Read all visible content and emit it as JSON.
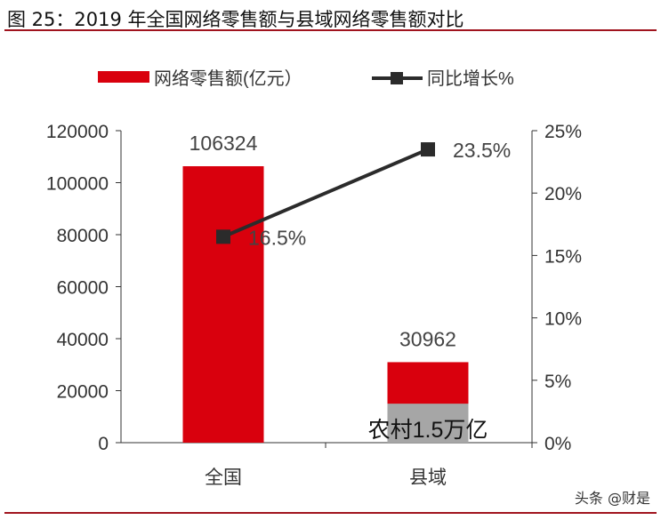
{
  "title": "图 25：2019 年全国网络零售额与县域网络零售额对比",
  "watermark": "头条 @财是",
  "chart_data": {
    "type": "bar+line",
    "categories": [
      "全国",
      "县域"
    ],
    "series": [
      {
        "name": "网络零售额(亿元）",
        "type": "bar",
        "axis": "left",
        "color": "#d9000d",
        "values": [
          106324,
          30962
        ],
        "data_labels": [
          "106324",
          "30962"
        ]
      },
      {
        "name": "同比增长%",
        "type": "line",
        "axis": "right",
        "color": "#2b2b2b",
        "values": [
          16.5,
          23.5
        ],
        "data_labels": [
          "16.5%",
          "23.5%"
        ]
      }
    ],
    "annotation": {
      "text": "农村1.5万亿",
      "category": "县域",
      "value": 15000,
      "color": "#a6a6a6"
    },
    "left_axis": {
      "range": [
        0,
        120000
      ],
      "ticks": [
        "0",
        "20000",
        "40000",
        "60000",
        "80000",
        "100000",
        "120000"
      ]
    },
    "right_axis": {
      "range": [
        0,
        25
      ],
      "ticks": [
        "0%",
        "5%",
        "10%",
        "15%",
        "20%",
        "25%"
      ]
    },
    "legend": "top",
    "grid": false
  }
}
